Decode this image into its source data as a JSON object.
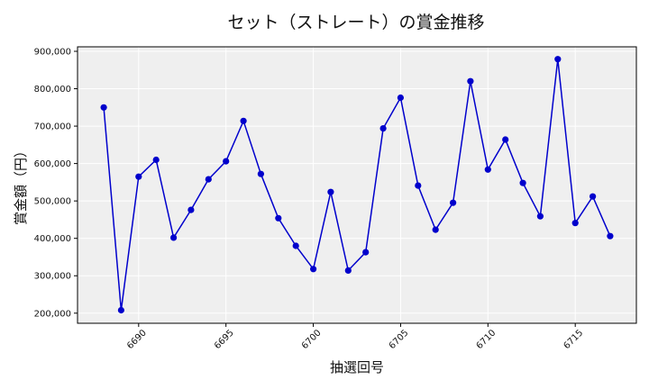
{
  "chart_data": {
    "type": "line",
    "title": "セット（ストレート）の賞金推移",
    "xlabel": "抽選回号",
    "ylabel": "賞金額（円）",
    "xlim": [
      6686.5,
      6718.5
    ],
    "ylim": [
      173000,
      912000
    ],
    "grid": true,
    "series_color": "#0000cc",
    "plot_background": "#efefef",
    "x_ticks": [
      6690,
      6695,
      6700,
      6705,
      6710,
      6715
    ],
    "y_ticks": [
      200000,
      300000,
      400000,
      500000,
      600000,
      700000,
      800000,
      900000
    ],
    "x_tick_labels": [
      "6690",
      "6695",
      "6700",
      "6705",
      "6710",
      "6715"
    ],
    "y_tick_labels": [
      "200,000",
      "300,000",
      "400,000",
      "500,000",
      "600,000",
      "700,000",
      "800,000",
      "900,000"
    ],
    "x": [
      6688,
      6689,
      6690,
      6691,
      6692,
      6693,
      6694,
      6695,
      6696,
      6697,
      6698,
      6699,
      6700,
      6701,
      6702,
      6703,
      6704,
      6705,
      6706,
      6707,
      6708,
      6709,
      6710,
      6711,
      6712,
      6713,
      6714,
      6715,
      6716,
      6717
    ],
    "values": [
      750000,
      208000,
      565000,
      610000,
      402000,
      476000,
      558000,
      606000,
      714000,
      572000,
      454000,
      380000,
      318000,
      524000,
      314000,
      363000,
      694000,
      776000,
      541000,
      423000,
      495000,
      820000,
      584000,
      664000,
      548000,
      459000,
      879000,
      441000,
      512000,
      406000
    ]
  }
}
